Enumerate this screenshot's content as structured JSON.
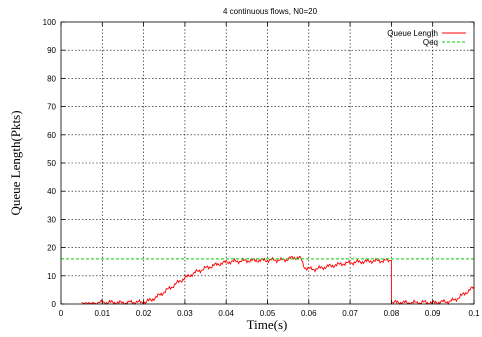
{
  "chart_data": {
    "type": "line",
    "title": "4 continuous flows, N0=20",
    "xlabel": "Time(s)",
    "ylabel": "Queue Length(Pkts)",
    "xlim": [
      0,
      0.1
    ],
    "ylim": [
      0,
      100
    ],
    "xticks": [
      "0",
      "0.01",
      "0.02",
      "0.03",
      "0.04",
      "0.05",
      "0.06",
      "0.07",
      "0.08",
      "0.09",
      "0.1"
    ],
    "yticks": [
      "0",
      "10",
      "20",
      "30",
      "40",
      "50",
      "60",
      "70",
      "80",
      "90",
      "100"
    ],
    "grid": true,
    "legend_position": "top-right",
    "series": [
      {
        "name": "Queue Length",
        "color": "#ff0000",
        "x": [
          0.005,
          0.008,
          0.009,
          0.012,
          0.015,
          0.018,
          0.02,
          0.021,
          0.022,
          0.023,
          0.024,
          0.025,
          0.026,
          0.027,
          0.028,
          0.029,
          0.03,
          0.031,
          0.032,
          0.033,
          0.034,
          0.035,
          0.036,
          0.037,
          0.038,
          0.039,
          0.04,
          0.042,
          0.044,
          0.046,
          0.048,
          0.05,
          0.052,
          0.054,
          0.055,
          0.056,
          0.057,
          0.058,
          0.0585,
          0.059,
          0.06,
          0.061,
          0.062,
          0.063,
          0.064,
          0.065,
          0.066,
          0.068,
          0.07,
          0.072,
          0.074,
          0.076,
          0.078,
          0.0795,
          0.08,
          0.0805,
          0.082,
          0.084,
          0.086,
          0.088,
          0.09,
          0.092,
          0.094,
          0.095,
          0.096,
          0.097,
          0.098,
          0.099,
          0.1
        ],
        "y": [
          0,
          0,
          0.5,
          0.6,
          0.4,
          0.7,
          0.5,
          1,
          1.6,
          2.4,
          3.3,
          4.3,
          5.3,
          6.3,
          7.3,
          8.3,
          9.2,
          10,
          10.8,
          11.5,
          12.1,
          12.7,
          13.2,
          13.7,
          14.1,
          14.5,
          14.8,
          15.1,
          15.3,
          15.4,
          15.5,
          15.5,
          15.6,
          15.6,
          16,
          16.3,
          16.5,
          16.2,
          14.5,
          13,
          12.5,
          12.3,
          12.5,
          12.8,
          13.1,
          13.4,
          13.7,
          14.2,
          14.6,
          14.9,
          15.1,
          15.3,
          15.3,
          15.4,
          0,
          0.5,
          0.6,
          0.4,
          0.5,
          0.6,
          0.4,
          0.7,
          0.9,
          1.3,
          2,
          3,
          4,
          5,
          6
        ]
      },
      {
        "name": "Qeq",
        "color": "#00cc00",
        "x": [
          0,
          0.1
        ],
        "y": [
          16,
          16
        ]
      }
    ]
  }
}
